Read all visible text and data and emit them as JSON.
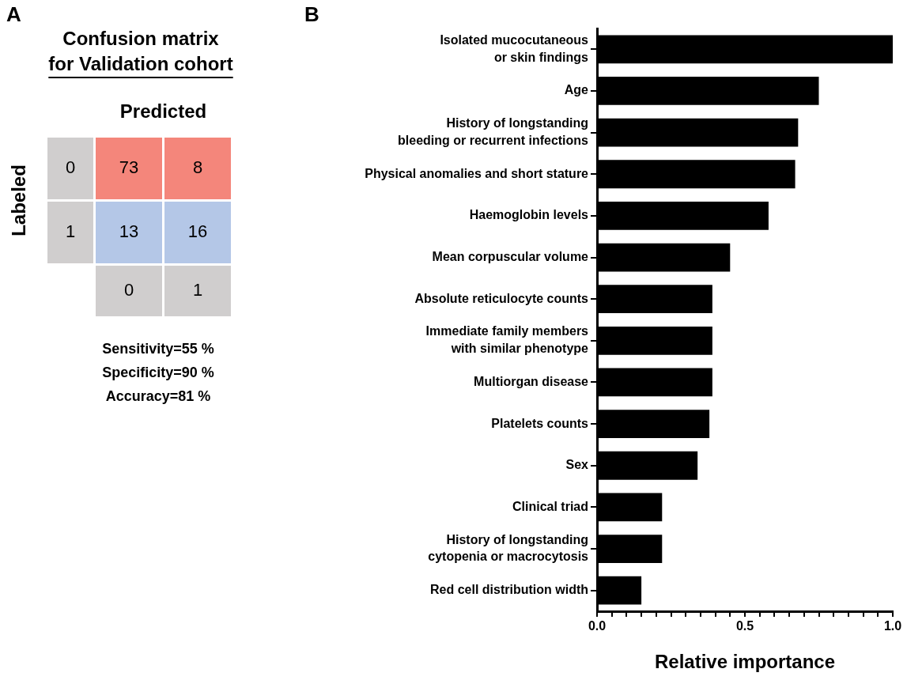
{
  "chart_data": [
    {
      "type": "heatmap",
      "title": "Confusion matrix",
      "subtitle": "for Validation cohort",
      "xlabel": "Predicted",
      "ylabel": "Labeled",
      "categories": [
        "0",
        "1"
      ],
      "y_categories": [
        "0",
        "1"
      ],
      "cells": [
        [
          73,
          8
        ],
        [
          13,
          16
        ]
      ],
      "colors": [
        [
          "#f4867b",
          "#f4867b"
        ],
        [
          "#b4c7e7",
          "#b4c7e7"
        ]
      ],
      "data_labels": true,
      "annotations": [
        "A",
        "Sensitivity=55 %",
        "Specificity=90 %",
        "Accuracy=81 %"
      ]
    },
    {
      "type": "bar",
      "orientation": "horizontal",
      "xlabel": "Relative importance",
      "categories": [
        "Isolated mucocutaneous\nor skin findings",
        "Age",
        "History of longstanding\nbleeding or recurrent infections",
        "Physical anomalies and short stature",
        "Haemoglobin levels",
        "Mean corpuscular volume",
        "Absolute reticulocyte counts",
        "Immediate family members\nwith similar phenotype",
        "Multiorgan disease",
        "Platelets counts",
        "Sex",
        "Clinical triad",
        "History of longstanding\ncytopenia or macrocytosis",
        "Red cell distribution width"
      ],
      "values": [
        1.0,
        0.75,
        0.68,
        0.67,
        0.58,
        0.45,
        0.39,
        0.39,
        0.39,
        0.38,
        0.34,
        0.22,
        0.22,
        0.15
      ],
      "color": "#000000",
      "xlim": [
        0,
        1
      ],
      "xticks": [
        {
          "value": 0,
          "label": "0.0"
        },
        {
          "value": 0.05,
          "label": null
        },
        {
          "value": 0.1,
          "label": null
        },
        {
          "value": 0.15,
          "label": null
        },
        {
          "value": 0.2,
          "label": null
        },
        {
          "value": 0.25,
          "label": null
        },
        {
          "value": 0.3,
          "label": null
        },
        {
          "value": 0.35,
          "label": null
        },
        {
          "value": 0.4,
          "label": null
        },
        {
          "value": 0.45,
          "label": null
        },
        {
          "value": 0.5,
          "label": "0.5"
        },
        {
          "value": 0.55,
          "label": null
        },
        {
          "value": 0.6,
          "label": null
        },
        {
          "value": 0.65,
          "label": null
        },
        {
          "value": 0.7,
          "label": null
        },
        {
          "value": 0.75,
          "label": null
        },
        {
          "value": 0.8,
          "label": null
        },
        {
          "value": 0.85,
          "label": null
        },
        {
          "value": 0.9,
          "label": null
        },
        {
          "value": 0.95,
          "label": null
        },
        {
          "value": 1,
          "label": "1.0"
        }
      ],
      "annotations": [
        "B"
      ]
    }
  ]
}
